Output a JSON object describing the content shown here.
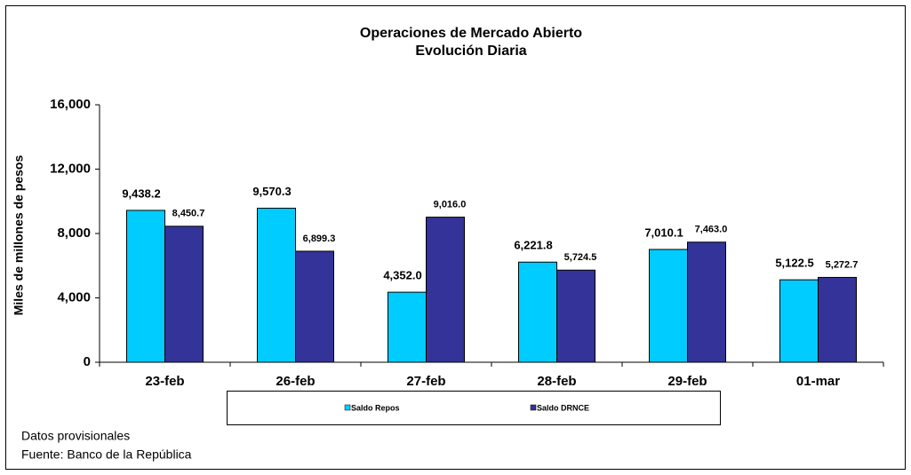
{
  "chart_data": {
    "type": "bar",
    "title": "Operaciones de Mercado Abierto",
    "subtitle": "Evolución Diaria",
    "y_label": "Miles de millones de pesos",
    "categories": [
      "23-feb",
      "26-feb",
      "27-feb",
      "28-feb",
      "29-feb",
      "01-mar"
    ],
    "series": [
      {
        "name": "Saldo Repos",
        "color": "#00ccff",
        "values": [
          9438.2,
          9570.3,
          4352.0,
          6221.8,
          7010.1,
          5122.5
        ],
        "value_labels": [
          "9,438.2",
          "9,570.3",
          "4,352.0",
          "6,221.8",
          "7,010.1",
          "5,122.5"
        ]
      },
      {
        "name": "Saldo DRNCE",
        "color": "#333399",
        "values": [
          8450.7,
          6899.3,
          9016.0,
          5724.5,
          7463.0,
          5272.7
        ],
        "value_labels": [
          "8,450.7",
          "6,899.3",
          "9,016.0",
          "5,724.5",
          "7,463.0",
          "5,272.7"
        ]
      }
    ],
    "ylim": [
      0,
      16000
    ],
    "yticks": [
      0,
      {
        "value": 4000,
        "label": "4,000"
      },
      {
        "value": 8000,
        "label": "8,000"
      },
      {
        "value": 12000,
        "label": "12,000"
      },
      {
        "value": 16000,
        "label": "16,000"
      }
    ],
    "notes": [
      "Datos provisionales",
      "Fuente: Banco de la República"
    ]
  }
}
